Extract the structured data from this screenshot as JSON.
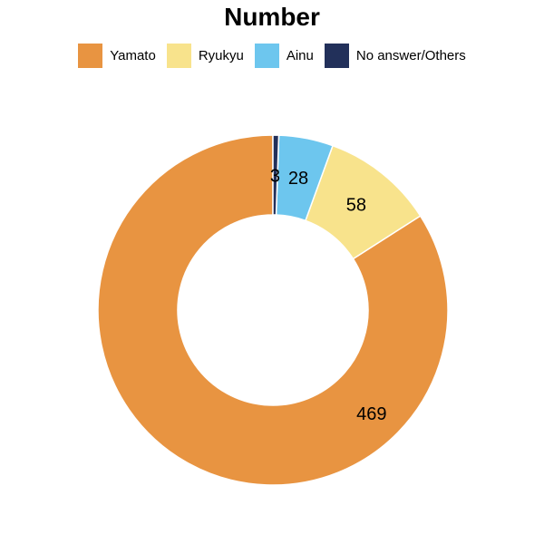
{
  "chart_data": {
    "type": "pie",
    "title": "Number",
    "donut": true,
    "legend_position": "top",
    "labels": [
      "Yamato",
      "Ryukyu",
      "Ainu",
      "No answer/Others"
    ],
    "values": [
      469,
      58,
      28,
      3
    ],
    "colors": [
      "#E89441",
      "#F8E38C",
      "#6DC6EE",
      "#22305A"
    ]
  }
}
